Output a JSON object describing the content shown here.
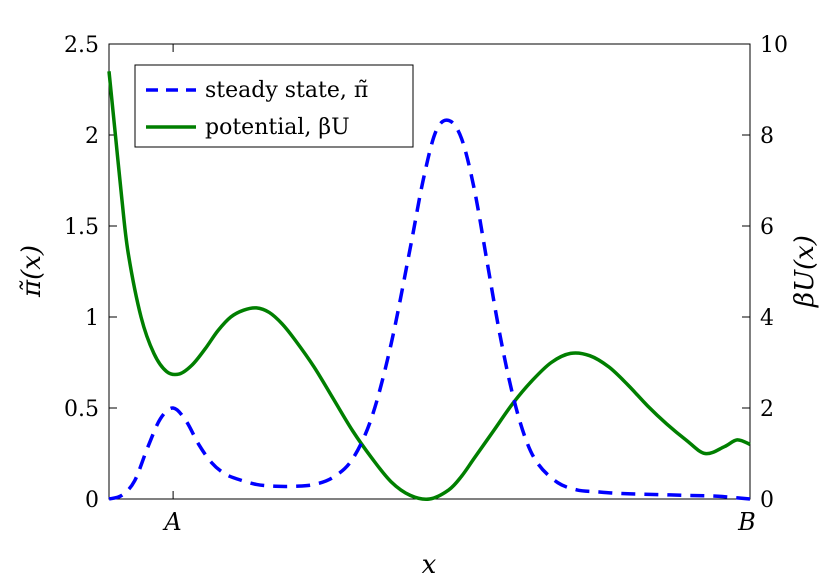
{
  "chart_data": {
    "type": "line",
    "xlabel": "x",
    "ylabel_left": "π̃(x)",
    "ylabel_right": "βU(x)",
    "xlim": [
      0,
      1
    ],
    "ylim_left": [
      0,
      2.5
    ],
    "ylim_right": [
      0,
      10
    ],
    "x_ticks": [
      {
        "value": 0.1,
        "label": "A"
      },
      {
        "value": 1.0,
        "label": "B"
      }
    ],
    "y_ticks_left": [
      "0",
      "0.5",
      "1",
      "1.5",
      "2",
      "2.5"
    ],
    "y_ticks_right": [
      "0",
      "2",
      "4",
      "6",
      "8",
      "10"
    ],
    "grid": false,
    "legend_position": "top-left",
    "series": [
      {
        "name": "steady state, π̃",
        "axis": "left",
        "color": "#0000ff",
        "style": "dashed",
        "x": [
          0.0,
          0.02,
          0.04,
          0.06,
          0.08,
          0.1,
          0.12,
          0.14,
          0.16,
          0.18,
          0.2,
          0.23,
          0.26,
          0.29,
          0.32,
          0.35,
          0.38,
          0.41,
          0.44,
          0.47,
          0.49,
          0.51,
          0.53,
          0.55,
          0.57,
          0.59,
          0.61,
          0.63,
          0.65,
          0.67,
          0.7,
          0.73,
          0.76,
          0.8,
          0.85,
          0.9,
          0.95,
          1.0
        ],
        "y": [
          0.0,
          0.02,
          0.1,
          0.28,
          0.44,
          0.5,
          0.43,
          0.3,
          0.2,
          0.14,
          0.11,
          0.08,
          0.07,
          0.07,
          0.08,
          0.12,
          0.22,
          0.45,
          0.85,
          1.38,
          1.75,
          2.02,
          2.08,
          1.98,
          1.7,
          1.3,
          0.9,
          0.57,
          0.33,
          0.19,
          0.09,
          0.05,
          0.04,
          0.03,
          0.025,
          0.02,
          0.015,
          0.0
        ]
      },
      {
        "name": "potential, βU",
        "axis": "right",
        "color": "#007f00",
        "style": "solid",
        "x": [
          0.0,
          0.01,
          0.02,
          0.03,
          0.05,
          0.07,
          0.09,
          0.11,
          0.13,
          0.15,
          0.17,
          0.19,
          0.21,
          0.23,
          0.25,
          0.27,
          0.29,
          0.32,
          0.35,
          0.38,
          0.41,
          0.44,
          0.47,
          0.5,
          0.53,
          0.55,
          0.57,
          0.6,
          0.63,
          0.66,
          0.69,
          0.72,
          0.75,
          0.78,
          0.81,
          0.84,
          0.87,
          0.9,
          0.93,
          0.96,
          0.98,
          1.0
        ],
        "y": [
          9.4,
          8.0,
          6.6,
          5.4,
          4.0,
          3.2,
          2.8,
          2.75,
          2.95,
          3.3,
          3.7,
          4.0,
          4.15,
          4.2,
          4.1,
          3.85,
          3.5,
          2.9,
          2.2,
          1.5,
          0.9,
          0.38,
          0.08,
          0.0,
          0.2,
          0.5,
          0.9,
          1.5,
          2.1,
          2.6,
          3.0,
          3.2,
          3.15,
          2.9,
          2.5,
          2.05,
          1.65,
          1.3,
          1.0,
          1.15,
          1.3,
          1.2
        ]
      }
    ]
  }
}
